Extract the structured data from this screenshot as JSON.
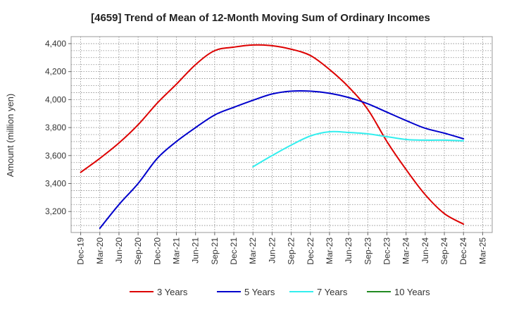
{
  "chart_data": {
    "type": "line",
    "title": "[4659]  Trend of Mean of 12-Month Moving Sum of Ordinary Incomes",
    "xlabel": "",
    "ylabel": "Amount (million yen)",
    "ylim": [
      3050,
      4450
    ],
    "yticks": [
      3200,
      3400,
      3600,
      3800,
      4000,
      4200,
      4400
    ],
    "ytick_labels": [
      "3,200",
      "3,400",
      "3,600",
      "3,800",
      "4,000",
      "4,200",
      "4,400"
    ],
    "grid": true,
    "legend_position": "bottom",
    "categories": [
      "Dec-19",
      "Mar-20",
      "Jun-20",
      "Sep-20",
      "Dec-20",
      "Mar-21",
      "Jun-21",
      "Sep-21",
      "Dec-21",
      "Mar-22",
      "Jun-22",
      "Sep-22",
      "Dec-22",
      "Mar-23",
      "Jun-23",
      "Sep-23",
      "Dec-23",
      "Mar-24",
      "Jun-24",
      "Sep-24",
      "Dec-24",
      "Mar-25"
    ],
    "series": [
      {
        "name": "3 Years",
        "color": "#dd0000",
        "values": [
          3480,
          3580,
          3690,
          3820,
          3975,
          4110,
          4250,
          4350,
          4375,
          4390,
          4385,
          4360,
          4315,
          4215,
          4090,
          3930,
          3700,
          3500,
          3320,
          3185,
          3110,
          null
        ]
      },
      {
        "name": "5 Years",
        "color": "#0000cc",
        "values": [
          null,
          3080,
          3250,
          3400,
          3580,
          3700,
          3800,
          3890,
          3945,
          3995,
          4040,
          4060,
          4060,
          4045,
          4015,
          3970,
          3910,
          3850,
          3795,
          3760,
          3720,
          null
        ]
      },
      {
        "name": "7 Years",
        "color": "#33eeee",
        "values": [
          null,
          null,
          null,
          null,
          null,
          null,
          null,
          null,
          null,
          3520,
          3600,
          3675,
          3740,
          3770,
          3765,
          3755,
          3735,
          3715,
          3710,
          3710,
          3705,
          null
        ]
      },
      {
        "name": "10 Years",
        "color": "#228b22",
        "values": [
          null,
          null,
          null,
          null,
          null,
          null,
          null,
          null,
          null,
          null,
          null,
          null,
          null,
          null,
          null,
          null,
          null,
          null,
          null,
          null,
          null,
          null
        ]
      }
    ]
  }
}
